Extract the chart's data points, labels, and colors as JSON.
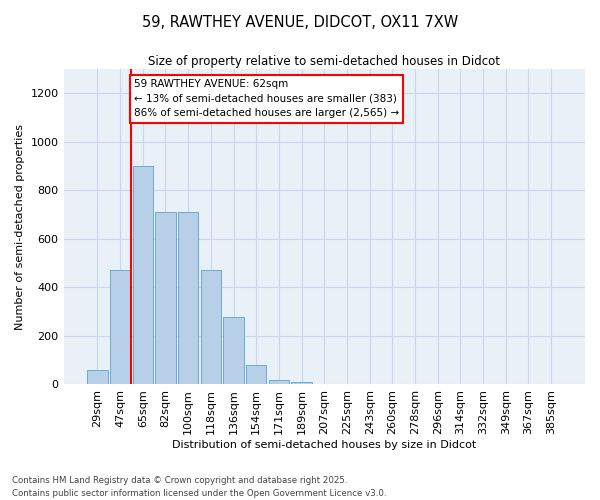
{
  "title_line1": "59, RAWTHEY AVENUE, DIDCOT, OX11 7XW",
  "title_line2": "Size of property relative to semi-detached houses in Didcot",
  "xlabel": "Distribution of semi-detached houses by size in Didcot",
  "ylabel": "Number of semi-detached properties",
  "bin_labels": [
    "29sqm",
    "47sqm",
    "65sqm",
    "82sqm",
    "100sqm",
    "118sqm",
    "136sqm",
    "154sqm",
    "171sqm",
    "189sqm",
    "207sqm",
    "225sqm",
    "243sqm",
    "260sqm",
    "278sqm",
    "296sqm",
    "314sqm",
    "332sqm",
    "349sqm",
    "367sqm",
    "385sqm"
  ],
  "bar_heights": [
    60,
    470,
    900,
    710,
    710,
    470,
    280,
    80,
    20,
    10,
    0,
    0,
    0,
    0,
    0,
    0,
    0,
    0,
    0,
    0,
    0
  ],
  "bar_color": "#b8cfe8",
  "bar_edge_color": "#6aaad4",
  "grid_color": "#c8d8ea",
  "background_color": "#e8f0f8",
  "vline_color": "red",
  "vline_x_index": 1.5,
  "annotation_text": "59 RAWTHEY AVENUE: 62sqm\n← 13% of semi-detached houses are smaller (383)\n86% of semi-detached houses are larger (2,565) →",
  "annotation_box_color": "white",
  "annotation_box_edge_color": "red",
  "footer_text": "Contains HM Land Registry data © Crown copyright and database right 2025.\nContains public sector information licensed under the Open Government Licence v3.0.",
  "ylim": [
    0,
    1300
  ],
  "yticks": [
    0,
    200,
    400,
    600,
    800,
    1000,
    1200
  ]
}
